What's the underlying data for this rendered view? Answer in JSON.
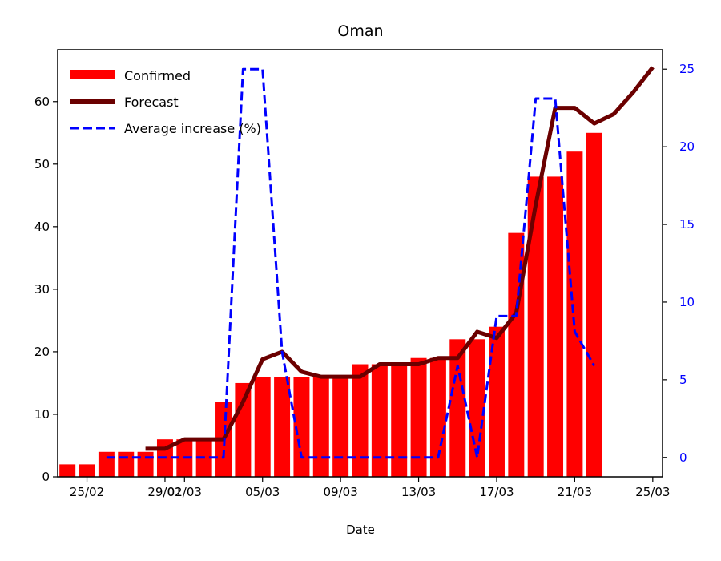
{
  "chart_data": {
    "type": "bar",
    "title": "Oman",
    "xlabel": "Date",
    "ylabel": "",
    "y2label": "",
    "x_start": "2020-02-24",
    "x_end": "2020-03-26",
    "x_ticks": [
      {
        "date": "2020-02-25",
        "label": "25/02"
      },
      {
        "date": "2020-02-29",
        "label": "29/02"
      },
      {
        "date": "2020-03-01",
        "label": "01/03"
      },
      {
        "date": "2020-03-05",
        "label": "05/03"
      },
      {
        "date": "2020-03-09",
        "label": "09/03"
      },
      {
        "date": "2020-03-13",
        "label": "13/03"
      },
      {
        "date": "2020-03-17",
        "label": "17/03"
      },
      {
        "date": "2020-03-21",
        "label": "21/03"
      },
      {
        "date": "2020-03-25",
        "label": "25/03"
      }
    ],
    "ylim": [
      0,
      68.3
    ],
    "y_ticks": [
      0,
      10,
      20,
      30,
      40,
      50,
      60
    ],
    "y2lim": [
      -1.25,
      26.25
    ],
    "y2_ticks": [
      0,
      5,
      10,
      15,
      20,
      25
    ],
    "legend_position": "top-left",
    "legend": [
      "Confirmed",
      "Forecast",
      "Average increase (%)"
    ],
    "colors": {
      "confirmed": "#ff0000",
      "forecast": "#6b0000",
      "average_increase": "#0000ff",
      "right_axis": "#0000ff"
    },
    "series": [
      {
        "name": "Confirmed",
        "type": "bar",
        "axis": "left",
        "points": [
          {
            "x": "2020-02-24",
            "y": 2
          },
          {
            "x": "2020-02-25",
            "y": 2
          },
          {
            "x": "2020-02-26",
            "y": 4
          },
          {
            "x": "2020-02-27",
            "y": 4
          },
          {
            "x": "2020-02-28",
            "y": 4
          },
          {
            "x": "2020-02-29",
            "y": 6
          },
          {
            "x": "2020-03-01",
            "y": 6
          },
          {
            "x": "2020-03-02",
            "y": 6
          },
          {
            "x": "2020-03-03",
            "y": 12
          },
          {
            "x": "2020-03-04",
            "y": 15
          },
          {
            "x": "2020-03-05",
            "y": 16
          },
          {
            "x": "2020-03-06",
            "y": 16
          },
          {
            "x": "2020-03-07",
            "y": 16
          },
          {
            "x": "2020-03-08",
            "y": 16
          },
          {
            "x": "2020-03-09",
            "y": 16
          },
          {
            "x": "2020-03-10",
            "y": 18
          },
          {
            "x": "2020-03-11",
            "y": 18
          },
          {
            "x": "2020-03-12",
            "y": 18
          },
          {
            "x": "2020-03-13",
            "y": 19
          },
          {
            "x": "2020-03-14",
            "y": 19
          },
          {
            "x": "2020-03-15",
            "y": 22
          },
          {
            "x": "2020-03-16",
            "y": 22
          },
          {
            "x": "2020-03-17",
            "y": 24
          },
          {
            "x": "2020-03-18",
            "y": 39
          },
          {
            "x": "2020-03-19",
            "y": 48
          },
          {
            "x": "2020-03-20",
            "y": 48
          },
          {
            "x": "2020-03-21",
            "y": 52
          },
          {
            "x": "2020-03-22",
            "y": 55
          }
        ]
      },
      {
        "name": "Forecast",
        "type": "line",
        "axis": "left",
        "points": [
          {
            "x": "2020-02-28",
            "y": 4.5
          },
          {
            "x": "2020-02-29",
            "y": 4.5
          },
          {
            "x": "2020-03-01",
            "y": 6
          },
          {
            "x": "2020-03-02",
            "y": 6
          },
          {
            "x": "2020-03-03",
            "y": 6
          },
          {
            "x": "2020-03-04",
            "y": 12
          },
          {
            "x": "2020-03-05",
            "y": 18.8
          },
          {
            "x": "2020-03-06",
            "y": 20
          },
          {
            "x": "2020-03-07",
            "y": 16.8
          },
          {
            "x": "2020-03-08",
            "y": 16
          },
          {
            "x": "2020-03-09",
            "y": 16
          },
          {
            "x": "2020-03-10",
            "y": 16
          },
          {
            "x": "2020-03-11",
            "y": 18
          },
          {
            "x": "2020-03-12",
            "y": 18
          },
          {
            "x": "2020-03-13",
            "y": 18
          },
          {
            "x": "2020-03-14",
            "y": 19
          },
          {
            "x": "2020-03-15",
            "y": 19
          },
          {
            "x": "2020-03-16",
            "y": 23.2
          },
          {
            "x": "2020-03-17",
            "y": 22.2
          },
          {
            "x": "2020-03-18",
            "y": 26.2
          },
          {
            "x": "2020-03-19",
            "y": 43.5
          },
          {
            "x": "2020-03-20",
            "y": 59
          },
          {
            "x": "2020-03-21",
            "y": 59
          },
          {
            "x": "2020-03-22",
            "y": 56.5
          },
          {
            "x": "2020-03-23",
            "y": 58
          },
          {
            "x": "2020-03-24",
            "y": 61.5
          },
          {
            "x": "2020-03-25",
            "y": 65.5
          }
        ]
      },
      {
        "name": "Average increase (%)",
        "type": "line",
        "style": "dashed",
        "axis": "right",
        "points": [
          {
            "x": "2020-02-26",
            "y": 0
          },
          {
            "x": "2020-02-27",
            "y": 0
          },
          {
            "x": "2020-02-28",
            "y": 0
          },
          {
            "x": "2020-02-29",
            "y": 0
          },
          {
            "x": "2020-03-01",
            "y": 0
          },
          {
            "x": "2020-03-02",
            "y": 0
          },
          {
            "x": "2020-03-03",
            "y": 0
          },
          {
            "x": "2020-03-04",
            "y": 25
          },
          {
            "x": "2020-03-05",
            "y": 25
          },
          {
            "x": "2020-03-06",
            "y": 6.8
          },
          {
            "x": "2020-03-07",
            "y": 0
          },
          {
            "x": "2020-03-08",
            "y": 0
          },
          {
            "x": "2020-03-09",
            "y": 0
          },
          {
            "x": "2020-03-10",
            "y": 0
          },
          {
            "x": "2020-03-11",
            "y": 0
          },
          {
            "x": "2020-03-12",
            "y": 0
          },
          {
            "x": "2020-03-13",
            "y": 0
          },
          {
            "x": "2020-03-14",
            "y": 0
          },
          {
            "x": "2020-03-15",
            "y": 5.9
          },
          {
            "x": "2020-03-16",
            "y": 0
          },
          {
            "x": "2020-03-17",
            "y": 9.1
          },
          {
            "x": "2020-03-18",
            "y": 9.1
          },
          {
            "x": "2020-03-19",
            "y": 23.1
          },
          {
            "x": "2020-03-20",
            "y": 23.1
          },
          {
            "x": "2020-03-21",
            "y": 8.1
          },
          {
            "x": "2020-03-22",
            "y": 5.9
          }
        ]
      }
    ]
  }
}
